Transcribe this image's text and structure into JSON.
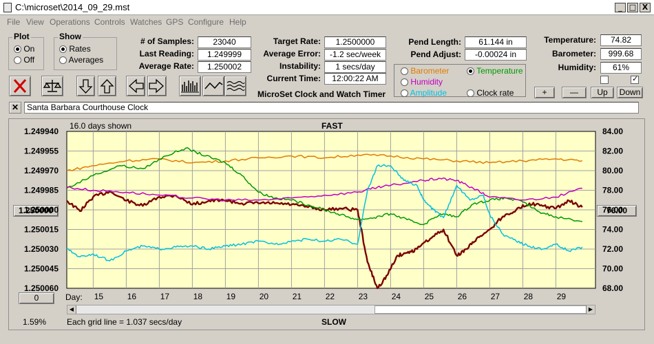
{
  "window": {
    "title": "C:\\microset\\2014_09_29.mst",
    "min": "_",
    "max": "□",
    "close": "X"
  },
  "menu": [
    "File",
    "View",
    "Operations",
    "Controls",
    "Watches",
    "GPS",
    "Configure",
    "Help"
  ],
  "plot_group": {
    "title": "Plot",
    "options": [
      "On",
      "Off"
    ],
    "selected": 0
  },
  "show_group": {
    "title": "Show",
    "options": [
      "Rates",
      "Averages"
    ],
    "selected": 0
  },
  "samples": [
    {
      "label": "# of Samples:",
      "value": "23040"
    },
    {
      "label": "Last Reading:",
      "value": "1.249999"
    },
    {
      "label": "Average Rate:",
      "value": "1.250002"
    }
  ],
  "rates": [
    {
      "label": "Target Rate:",
      "value": "1.2500000"
    },
    {
      "label": "Average Error:",
      "value": "-1.2 sec/week"
    },
    {
      "label": "Instability:",
      "value": "1 secs/day"
    },
    {
      "label": "Current Time:",
      "value": "12:00:22 AM"
    }
  ],
  "app_name": "MicroSet Clock and Watch Timer",
  "pendulum": [
    {
      "label": "Pend Length:",
      "value": "61.144 in"
    },
    {
      "label": "Pend Adjust:",
      "value": "-0.00024 in"
    }
  ],
  "channels": [
    {
      "label": "Barometer",
      "color": "#e07b00",
      "on": false
    },
    {
      "label": "Temperature",
      "color": "#009900",
      "on": true
    },
    {
      "label": "Humidity",
      "color": "#c000c0",
      "on": false
    },
    {
      "label": "Amplitude",
      "color": "#00c0e0",
      "on": false
    },
    {
      "label": "Clock rate",
      "color": "#000000",
      "on": false
    }
  ],
  "environment": [
    {
      "label": "Temperature:",
      "value": "74.82"
    },
    {
      "label": "Barometer:",
      "value": "999.68"
    },
    {
      "label": "Humidity:",
      "value": "61%"
    }
  ],
  "scale_buttons": [
    "+",
    "—",
    "Up",
    "Down"
  ],
  "description": "Santa Barbara Courthouse Clock",
  "plot": {
    "days_shown": "16.0 days shown",
    "fast": "FAST",
    "slow": "SLOW",
    "grid_note": "Each grid line = 1.037 secs/day",
    "percent": "1.59%",
    "left_value": "1.250000",
    "right_value": "76.00",
    "bottom_button": "0",
    "day_label": "Day:"
  },
  "chart_data": {
    "type": "line",
    "x_label": "Day:",
    "x_ticks": [
      "15",
      "16",
      "17",
      "18",
      "19",
      "20",
      "21",
      "22",
      "23",
      "24",
      "25",
      "26",
      "27",
      "28",
      "29"
    ],
    "xlim": [
      14.2,
      30.2
    ],
    "y_left_ticks": [
      "1.249940",
      "1.249955",
      "1.249970",
      "1.249985",
      "1.250000",
      "1.250015",
      "1.250030",
      "1.250045",
      "1.250060"
    ],
    "y_left_lim": [
      1.24994,
      1.25006
    ],
    "y_right_ticks": [
      "84.00",
      "82.00",
      "80.00",
      "78.00",
      "76.00",
      "74.00",
      "72.00",
      "70.00",
      "68.00"
    ],
    "y_right_lim": [
      68,
      84
    ],
    "series": [
      {
        "name": "Clock rate",
        "color": "#7a0000",
        "axis": "left",
        "x": [
          14.2,
          14.6,
          15.0,
          15.5,
          16.0,
          16.5,
          17.0,
          17.5,
          18.0,
          18.5,
          19.0,
          19.5,
          20.0,
          20.5,
          21.0,
          21.5,
          22.0,
          22.5,
          23.0,
          23.3,
          23.6,
          23.9,
          24.2,
          24.5,
          24.8,
          25.2,
          25.6,
          26.0,
          26.3,
          26.6,
          27.0,
          27.4,
          27.8,
          28.2,
          28.6,
          29.0,
          29.4,
          29.8
        ],
        "y": [
          1.249993,
          1.250001,
          1.24999,
          1.249986,
          1.249993,
          1.249997,
          1.24999,
          1.249989,
          1.249996,
          1.249993,
          1.249993,
          1.249995,
          1.249995,
          1.249995,
          1.249996,
          1.249998,
          1.25,
          1.249999,
          1.25,
          1.25004,
          1.25006,
          1.25005,
          1.250035,
          1.250033,
          1.25003,
          1.250022,
          1.250015,
          1.250035,
          1.25003,
          1.250022,
          1.250015,
          1.250005,
          1.25,
          1.249995,
          1.249997,
          1.249999,
          1.249993,
          1.249998
        ]
      },
      {
        "name": "Barometer",
        "color": "#e07b00",
        "axis": "right",
        "x": [
          14.2,
          15.0,
          16.0,
          17.0,
          18.0,
          19.0,
          20.0,
          21.0,
          22.0,
          23.0,
          24.0,
          25.0,
          26.0,
          27.0,
          28.0,
          29.0,
          29.8
        ],
        "y": [
          80.0,
          80.5,
          81.0,
          81.2,
          80.8,
          81.0,
          81.3,
          81.5,
          81.3,
          81.6,
          81.5,
          81.2,
          81.0,
          80.8,
          81.0,
          81.2,
          81.0
        ]
      },
      {
        "name": "Temperature",
        "color": "#009900",
        "axis": "right",
        "x": [
          14.2,
          15.0,
          15.8,
          16.5,
          17.2,
          17.8,
          18.4,
          19.0,
          19.5,
          20.0,
          20.5,
          21.0,
          21.5,
          22.0,
          22.5,
          23.0,
          23.5,
          24.0,
          24.5,
          25.0,
          25.5,
          26.0,
          26.5,
          27.0,
          27.5,
          28.0,
          28.5,
          29.0,
          29.8
        ],
        "y": [
          78.2,
          79.5,
          80.5,
          80.2,
          81.5,
          82.3,
          81.5,
          80.8,
          79.5,
          77.8,
          77.2,
          77.0,
          76.5,
          76.0,
          75.5,
          75.0,
          75.2,
          75.6,
          75.0,
          74.5,
          75.6,
          75.3,
          76.6,
          77.0,
          77.2,
          76.8,
          75.8,
          75.3,
          74.8
        ]
      },
      {
        "name": "Humidity",
        "color": "#c000c0",
        "axis": "right",
        "x": [
          14.2,
          15.0,
          16.0,
          17.0,
          18.0,
          19.0,
          20.0,
          21.0,
          22.0,
          23.0,
          23.5,
          24.0,
          25.0,
          25.5,
          26.0,
          26.5,
          27.0,
          28.0,
          29.0,
          29.8
        ],
        "y": [
          78.3,
          78.0,
          77.8,
          77.5,
          77.2,
          77.0,
          77.0,
          77.2,
          77.5,
          77.8,
          78.2,
          78.5,
          79.0,
          79.2,
          79.0,
          78.2,
          77.3,
          77.0,
          77.3,
          78.2
        ]
      },
      {
        "name": "Amplitude",
        "color": "#00c0e0",
        "axis": "right",
        "x": [
          14.2,
          14.6,
          15.0,
          15.5,
          16.0,
          16.5,
          17.0,
          17.5,
          18.0,
          18.5,
          19.0,
          19.5,
          20.0,
          20.5,
          21.0,
          21.5,
          22.0,
          22.5,
          23.0,
          23.3,
          23.6,
          24.0,
          24.4,
          24.8,
          25.0,
          25.3,
          25.6,
          26.0,
          26.4,
          26.8,
          27.0,
          27.4,
          27.8,
          28.2,
          28.6,
          29.0,
          29.4,
          29.8
        ],
        "y": [
          72.0,
          71.2,
          71.5,
          70.8,
          71.8,
          72.3,
          72.0,
          72.2,
          72.3,
          72.0,
          72.3,
          72.5,
          72.8,
          72.5,
          72.8,
          73.0,
          72.8,
          73.0,
          72.5,
          78.0,
          80.5,
          80.5,
          79.0,
          78.5,
          77.0,
          76.0,
          75.2,
          78.5,
          77.0,
          77.5,
          75.5,
          73.5,
          72.8,
          72.3,
          72.0,
          72.5,
          71.8,
          72.2
        ]
      }
    ]
  }
}
